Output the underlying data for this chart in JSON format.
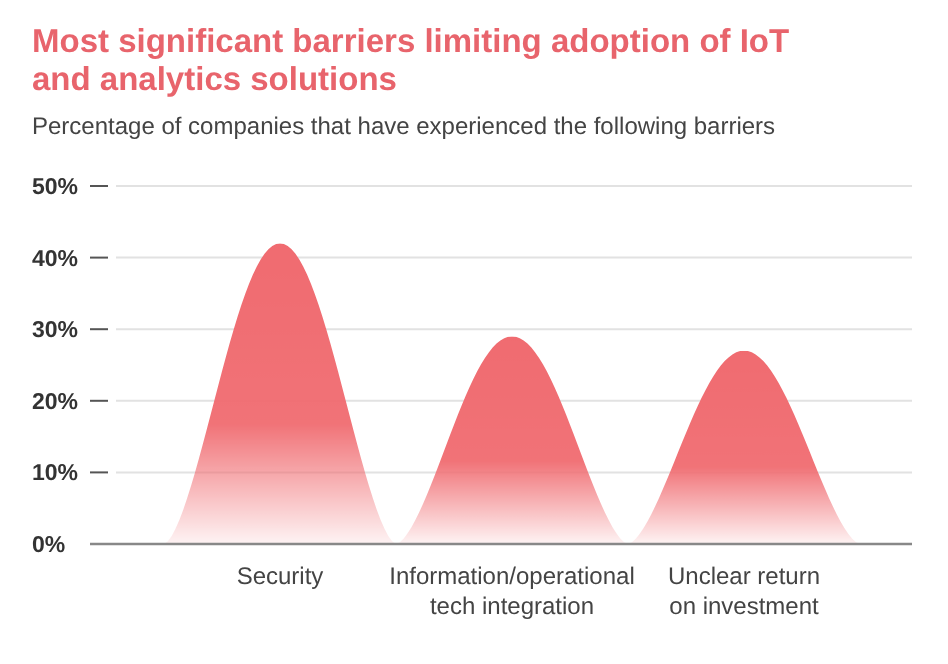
{
  "chart_data": {
    "type": "bar",
    "title": "Most significant barriers limiting adoption of IoT and analytics solutions",
    "subtitle": "Percentage of companies that have experienced the following barriers",
    "categories": [
      "Security",
      "Information/operational tech integration",
      "Unclear return on investment"
    ],
    "values": [
      42,
      29,
      27
    ],
    "color": "#f06b70",
    "ylim": [
      0,
      50
    ],
    "yticks": [
      {
        "value": 0,
        "label": "0%"
      },
      {
        "value": 10,
        "label": "10%"
      },
      {
        "value": 20,
        "label": "20%"
      },
      {
        "value": 30,
        "label": "30%"
      },
      {
        "value": 40,
        "label": "40%"
      },
      {
        "value": 50,
        "label": "50%"
      }
    ],
    "grid": "y"
  }
}
